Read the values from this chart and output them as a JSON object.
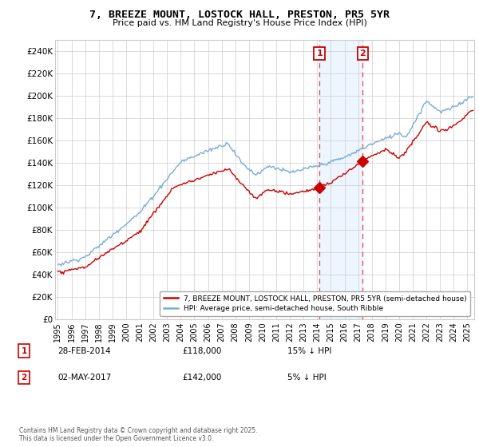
{
  "title": "7, BREEZE MOUNT, LOSTOCK HALL, PRESTON, PR5 5YR",
  "subtitle": "Price paid vs. HM Land Registry's House Price Index (HPI)",
  "hpi_label": "HPI: Average price, semi-detached house, South Ribble",
  "property_label": "7, BREEZE MOUNT, LOSTOCK HALL, PRESTON, PR5 5YR (semi-detached house)",
  "hpi_color": "#7aadd4",
  "property_color": "#cc0000",
  "purchase1_date": "28-FEB-2014",
  "purchase1_price": 118000,
  "purchase1_note": "15% ↓ HPI",
  "purchase2_date": "02-MAY-2017",
  "purchase2_price": 142000,
  "purchase2_note": "5% ↓ HPI",
  "purchase1_x": 2014.16,
  "purchase2_x": 2017.33,
  "vline1_x": 2014.16,
  "vline2_x": 2017.33,
  "ylim": [
    0,
    250000
  ],
  "xlim_start": 1994.8,
  "xlim_end": 2025.5,
  "yticks": [
    0,
    20000,
    40000,
    60000,
    80000,
    100000,
    120000,
    140000,
    160000,
    180000,
    200000,
    220000,
    240000
  ],
  "ytick_labels": [
    "£0",
    "£20K",
    "£40K",
    "£60K",
    "£80K",
    "£100K",
    "£120K",
    "£140K",
    "£160K",
    "£180K",
    "£200K",
    "£220K",
    "£240K"
  ],
  "footer": "Contains HM Land Registry data © Crown copyright and database right 2025.\nThis data is licensed under the Open Government Licence v3.0.",
  "background_color": "#ffffff",
  "grid_color": "#cccccc",
  "highlight_color": "#ddeeff",
  "highlight_alpha": 0.5
}
